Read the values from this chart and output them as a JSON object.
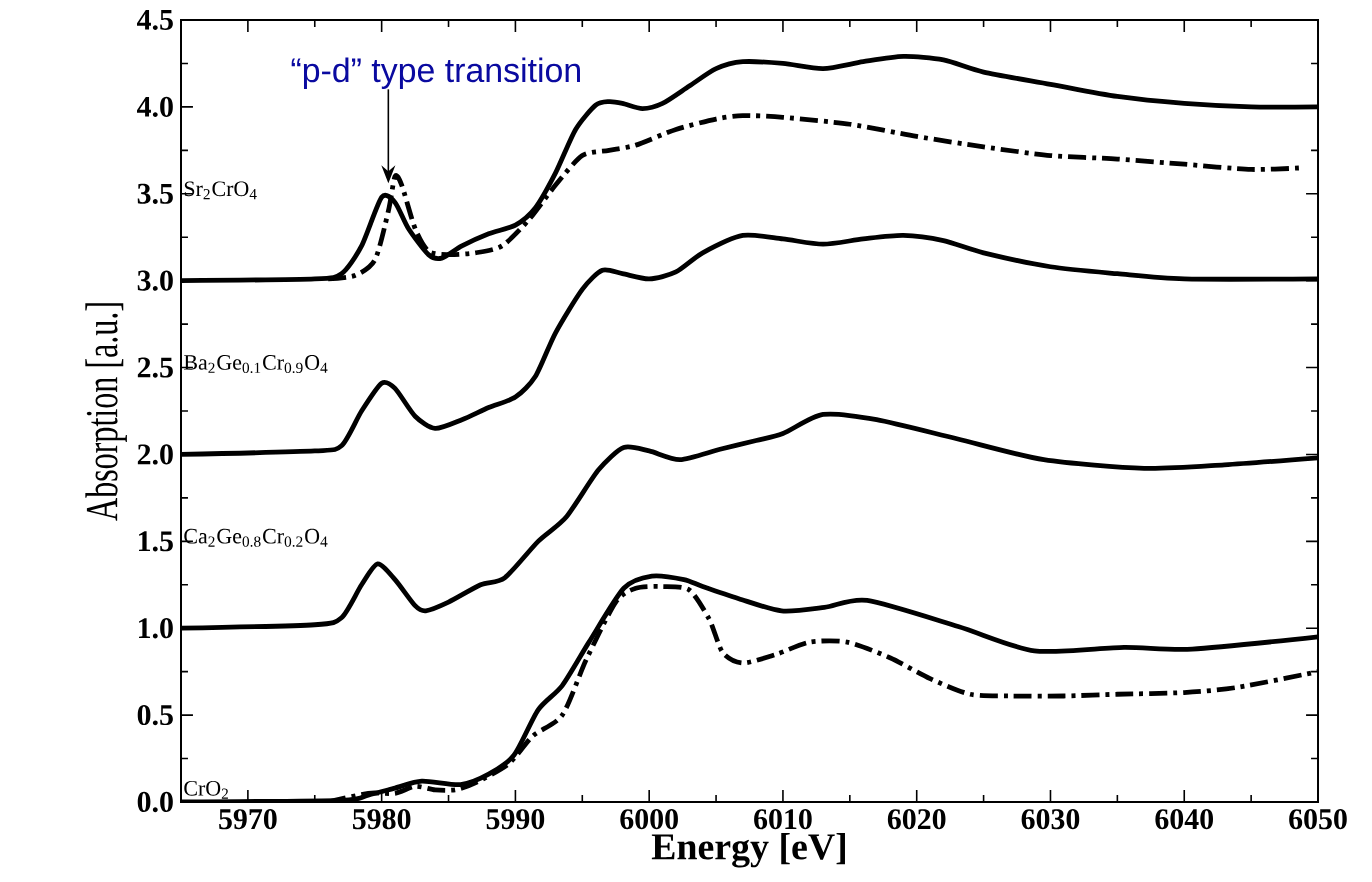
{
  "chart_data": {
    "type": "line",
    "xlabel": "Energy [eV]",
    "ylabel": "Absorption [a.u.]",
    "xlim": [
      5965,
      6050
    ],
    "ylim": [
      0,
      4.5
    ],
    "xticks": [
      5970,
      5980,
      5990,
      6000,
      6010,
      6020,
      6030,
      6040,
      6050
    ],
    "yticks": [
      {
        "value": 0,
        "label": "0.0"
      },
      {
        "value": 0.5,
        "label": "0.5"
      },
      {
        "value": 1,
        "label": "1.0"
      },
      {
        "value": 1.5,
        "label": "1.5"
      },
      {
        "value": 2,
        "label": "2.0"
      },
      {
        "value": 2.5,
        "label": "2.5"
      },
      {
        "value": 3,
        "label": "3.0"
      },
      {
        "value": 3.5,
        "label": "3.5"
      },
      {
        "value": 4,
        "label": "4.0"
      },
      {
        "value": 4.5,
        "label": "4.5"
      }
    ],
    "grid": false,
    "legend": "left",
    "marker": "none",
    "annotations": [
      {
        "text": "“p-d” type transition",
        "x": 5980.5,
        "y": 3.56
      }
    ],
    "series": [
      {
        "name": "Sr$_{2}$CrO$_{4}$",
        "color": "#000000",
        "line_style": "solid",
        "x": [
          5965,
          5975,
          5977,
          5978.5,
          5980,
          5981,
          5982,
          5983.5,
          5984.5,
          5986,
          5988,
          5990,
          5991.5,
          5993,
          5994.5,
          5996,
          5997,
          5998,
          5999.5,
          6001,
          6003,
          6005,
          6007,
          6010,
          6013,
          6016,
          6019,
          6022,
          6025,
          6030,
          6035,
          6040,
          6045,
          6050
        ],
        "values": [
          3.0,
          3.01,
          3.04,
          3.2,
          3.48,
          3.45,
          3.3,
          3.15,
          3.13,
          3.2,
          3.27,
          3.32,
          3.42,
          3.62,
          3.87,
          4.01,
          4.03,
          4.02,
          3.99,
          4.02,
          4.12,
          4.22,
          4.26,
          4.25,
          4.22,
          4.26,
          4.29,
          4.27,
          4.2,
          4.13,
          4.06,
          4.02,
          4.0,
          4.0
        ]
      },
      {
        "color": "#000000",
        "line_style": "dashdot",
        "x": [
          5976,
          5978,
          5979.5,
          5980.5,
          5981,
          5981.5,
          5982.5,
          5983.5,
          5985,
          5987,
          5989,
          5991,
          5993,
          5995,
          5997,
          5999,
          6002,
          6005,
          6007,
          6010,
          6015,
          6020,
          6025,
          6030,
          6035,
          6040,
          6045,
          6049
        ],
        "values": [
          3.01,
          3.03,
          3.12,
          3.4,
          3.6,
          3.55,
          3.3,
          3.17,
          3.15,
          3.16,
          3.2,
          3.35,
          3.55,
          3.72,
          3.75,
          3.78,
          3.87,
          3.93,
          3.95,
          3.94,
          3.9,
          3.83,
          3.77,
          3.72,
          3.7,
          3.67,
          3.64,
          3.65
        ]
      },
      {
        "name": "Ba$_{2}$Ge$_{0.1}$Cr$_{0.9}$O$_{4}$",
        "color": "#000000",
        "line_style": "solid",
        "x": [
          5965,
          5975,
          5977,
          5978.5,
          5980,
          5981,
          5982.5,
          5984,
          5986,
          5988,
          5990,
          5991.5,
          5993,
          5995,
          5996.5,
          5998,
          6000,
          6002,
          6004,
          6007,
          6010,
          6013,
          6016,
          6019,
          6022,
          6025,
          6030,
          6035,
          6040,
          6050
        ],
        "values": [
          2.0,
          2.02,
          2.05,
          2.25,
          2.41,
          2.38,
          2.22,
          2.15,
          2.2,
          2.27,
          2.33,
          2.45,
          2.7,
          2.95,
          3.06,
          3.04,
          3.01,
          3.05,
          3.16,
          3.26,
          3.24,
          3.21,
          3.24,
          3.26,
          3.23,
          3.16,
          3.08,
          3.04,
          3.01,
          3.01
        ]
      },
      {
        "name": "Ca$_{2}$Ge$_{0.8}$Cr$_{0.2}$O$_{4}$",
        "color": "#000000",
        "line_style": "solid",
        "x": [
          5965,
          5975,
          5977,
          5978.5,
          5979.7,
          5981,
          5982.5,
          5983.3,
          5985,
          5987.4,
          5989.2,
          5991.7,
          5993.8,
          5996.2,
          5998.1,
          6000,
          6002.3,
          6005.3,
          6008,
          6010,
          6013,
          6017,
          6023,
          6029.5,
          6037,
          6043,
          6050
        ],
        "values": [
          1.0,
          1.02,
          1.06,
          1.25,
          1.37,
          1.28,
          1.13,
          1.1,
          1.15,
          1.25,
          1.29,
          1.5,
          1.64,
          1.91,
          2.04,
          2.02,
          1.97,
          2.03,
          2.08,
          2.12,
          2.23,
          2.2,
          2.09,
          1.97,
          1.92,
          1.94,
          1.98
        ]
      },
      {
        "name": "CrO$_{2}$",
        "color": "#000000",
        "line_style": "solid",
        "x": [
          5965,
          5977,
          5979,
          5981,
          5983,
          5985.9,
          5988,
          5989.9,
          5991.7,
          5993.5,
          5995.5,
          5998.1,
          6000.2,
          6002.6,
          6004,
          6006.7,
          6009.9,
          6013.1,
          6016.3,
          6023.1,
          6028.8,
          6035.5,
          6040.6,
          6050
        ],
        "values": [
          0.0,
          0.01,
          0.04,
          0.08,
          0.12,
          0.1,
          0.16,
          0.27,
          0.53,
          0.67,
          0.92,
          1.23,
          1.3,
          1.28,
          1.24,
          1.17,
          1.1,
          1.12,
          1.16,
          1.01,
          0.87,
          0.89,
          0.88,
          0.95
        ]
      },
      {
        "color": "#000000",
        "line_style": "dashdot",
        "x": [
          5976,
          5979,
          5981,
          5982.5,
          5984,
          5985.5,
          5987,
          5989.5,
          5991.3,
          5993.5,
          5995.3,
          5997.5,
          5999,
          6001,
          6003,
          6004.5,
          6005.5,
          6007,
          6009.5,
          6012,
          6014.8,
          6018,
          6021,
          6024,
          6027,
          6031,
          6035,
          6040,
          6044,
          6050
        ],
        "values": [
          0.0,
          0.05,
          0.05,
          0.09,
          0.07,
          0.07,
          0.11,
          0.22,
          0.38,
          0.5,
          0.82,
          1.15,
          1.23,
          1.24,
          1.22,
          1.05,
          0.86,
          0.8,
          0.85,
          0.92,
          0.92,
          0.83,
          0.71,
          0.62,
          0.61,
          0.61,
          0.62,
          0.63,
          0.66,
          0.75
        ]
      }
    ]
  }
}
